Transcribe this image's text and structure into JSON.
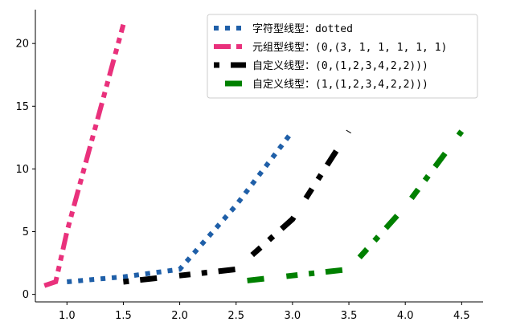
{
  "chart_data": {
    "type": "line",
    "title": "",
    "xlabel": "",
    "ylabel": "",
    "xlim": [
      0.72,
      4.69
    ],
    "ylim": [
      -0.6,
      22.7
    ],
    "x_ticks": [
      1.0,
      1.5,
      2.0,
      2.5,
      3.0,
      3.5,
      4.0,
      4.5
    ],
    "x_tick_labels": [
      "1.0",
      "1.5",
      "2.0",
      "2.5",
      "3.0",
      "3.5",
      "4.0",
      "4.5"
    ],
    "y_ticks": [
      0,
      5,
      10,
      15,
      20
    ],
    "y_tick_labels": [
      "0",
      "5",
      "10",
      "15",
      "20"
    ],
    "grid": false,
    "legend_position": "top-right",
    "series": [
      {
        "name": "字符型线型：dotted",
        "color": "#1f5fa8",
        "linestyle": "dotted",
        "x": [
          1.0,
          1.5,
          2.0,
          2.5,
          3.0
        ],
        "y": [
          1.0,
          1.4,
          2.0,
          7.1,
          13.0
        ]
      },
      {
        "name": "元组型线型：(0,(3, 1, 1, 1, 1, 1)",
        "color": "#e9317c",
        "linestyle": "dash-dot-dot",
        "x": [
          0.8,
          0.9,
          1.0,
          1.5
        ],
        "y": [
          0.7,
          1.0,
          5.0,
          21.5
        ]
      },
      {
        "name": "自定义线型：(0,(1,2,3,4,2,2)))",
        "color": "#000000",
        "linestyle": "custom-1",
        "x": [
          1.5,
          2.0,
          2.5,
          3.0,
          3.5
        ],
        "y": [
          1.0,
          1.5,
          2.0,
          6.0,
          13.0
        ]
      },
      {
        "name": "自定义线型：(1,(1,2,3,4,2,2)))",
        "color": "#008000",
        "linestyle": "custom-2",
        "x": [
          2.5,
          3.0,
          3.5,
          4.0,
          4.5
        ],
        "y": [
          1.0,
          1.5,
          2.0,
          7.0,
          13.0
        ]
      }
    ]
  }
}
